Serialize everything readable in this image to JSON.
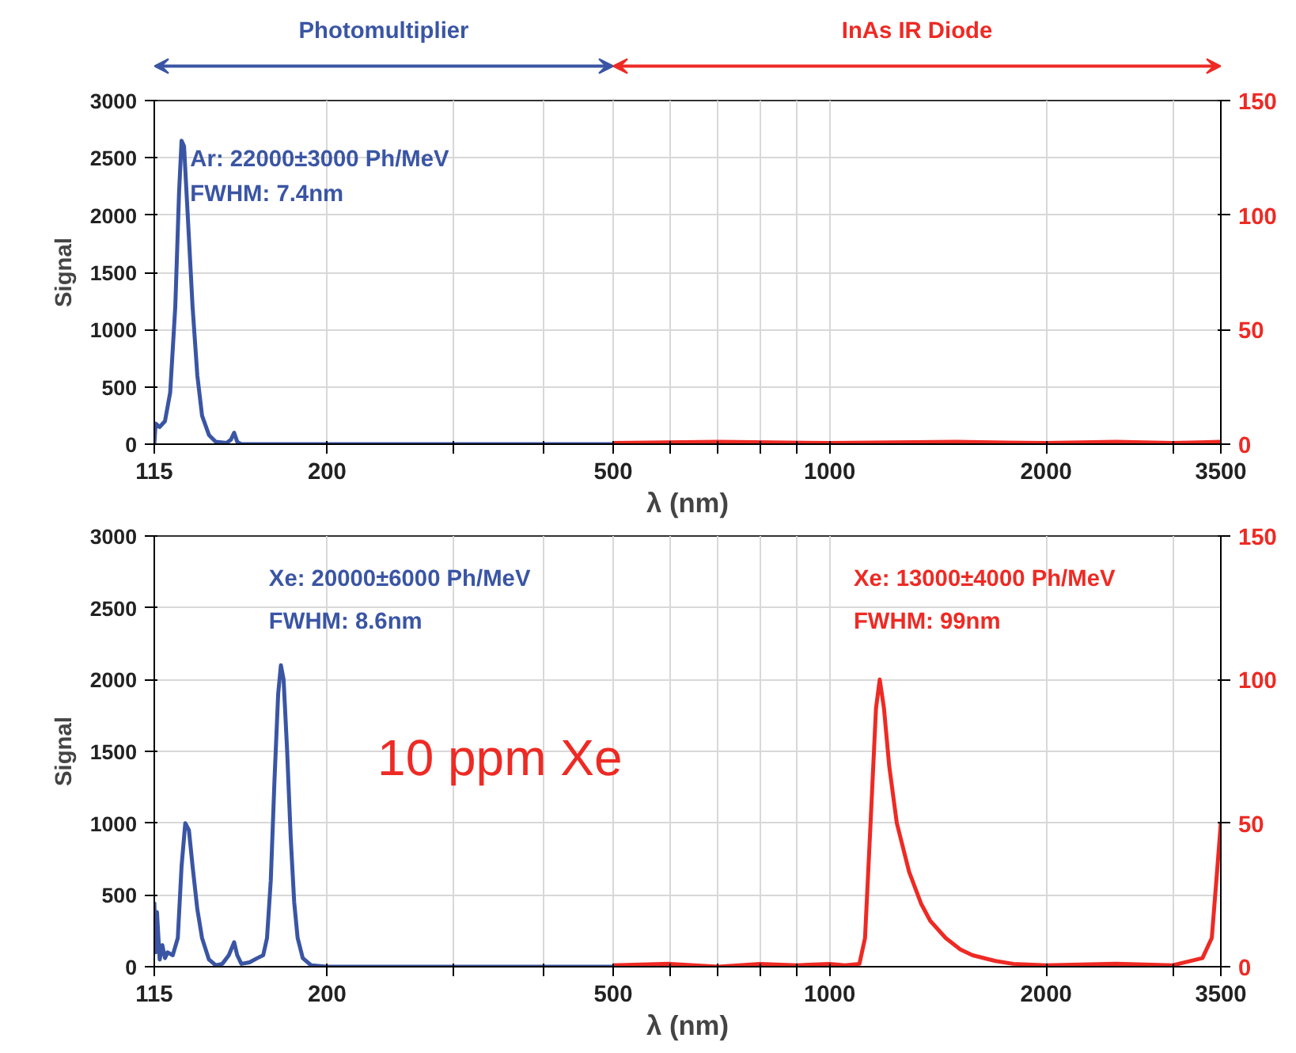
{
  "chart_data": [
    {
      "type": "line",
      "xlabel": "λ (nm)",
      "ylabel": "Signal",
      "log": "x",
      "grid": true,
      "marker": "none",
      "line_style": "solid",
      "xlim": [
        115,
        3500
      ],
      "xticks": [
        115,
        200,
        {
          "value": 300,
          "label": null
        },
        {
          "value": 400,
          "label": null
        },
        500,
        {
          "value": 600,
          "label": null
        },
        {
          "value": 700,
          "label": null
        },
        {
          "value": 800,
          "label": null
        },
        {
          "value": 900,
          "label": null
        },
        1000,
        2000,
        {
          "value": 3000,
          "label": null
        },
        3500
      ],
      "ylim": [
        0,
        3000
      ],
      "yticks": [
        0,
        500,
        1000,
        1500,
        2000,
        2500,
        3000
      ],
      "y2lim": [
        0,
        150
      ],
      "y2ticks": [
        0,
        50,
        100,
        150
      ],
      "annotations": [
        "Photomultiplier",
        "InAs IR Diode",
        "Ar: 22000±3000 Ph/MeV",
        "FWHM: 7.4nm"
      ],
      "series": [
        {
          "color": "#3a55a4",
          "x": [
            115,
            115.5,
            117,
            119,
            121,
            123,
            124.5,
            125.5,
            126.5,
            128,
            130,
            132,
            134,
            137,
            140,
            145,
            147,
            148.5,
            150,
            152,
            200,
            300,
            500
          ],
          "values": [
            0,
            180,
            150,
            200,
            450,
            1200,
            2200,
            2650,
            2600,
            2000,
            1200,
            600,
            250,
            80,
            20,
            10,
            40,
            100,
            20,
            0,
            0,
            0,
            0
          ]
        },
        {
          "color": "#ee2a24",
          "axis": "y2",
          "x": [
            500,
            700,
            1000,
            1500,
            2000,
            2500,
            3000,
            3500
          ],
          "values": [
            0.5,
            1,
            0.5,
            1,
            0.5,
            1,
            0.5,
            1
          ]
        }
      ]
    },
    {
      "type": "line",
      "xlabel": "λ (nm)",
      "ylabel": "Signal",
      "log": "x",
      "grid": true,
      "marker": "none",
      "line_style": "solid",
      "xlim": [
        115,
        3500
      ],
      "xticks": [
        115,
        200,
        {
          "value": 300,
          "label": null
        },
        {
          "value": 400,
          "label": null
        },
        500,
        {
          "value": 600,
          "label": null
        },
        {
          "value": 700,
          "label": null
        },
        {
          "value": 800,
          "label": null
        },
        {
          "value": 900,
          "label": null
        },
        1000,
        2000,
        {
          "value": 3000,
          "label": null
        },
        3500
      ],
      "ylim": [
        0,
        3000
      ],
      "yticks": [
        0,
        500,
        1000,
        1500,
        2000,
        2500,
        3000
      ],
      "y2lim": [
        0,
        150
      ],
      "y2ticks": [
        0,
        50,
        100,
        150
      ],
      "annotations": [
        "Xe: 20000±6000 Ph/MeV",
        "FWHM: 8.6nm",
        "Xe: 13000±4000 Ph/MeV",
        "FWHM: 99nm",
        "10 ppm Xe"
      ],
      "series": [
        {
          "color": "#3a55a4",
          "x": [
            115,
            115.5,
            116,
            117,
            118,
            119,
            120,
            122,
            124,
            125.5,
            127,
            128.5,
            130,
            132,
            134,
            137,
            140,
            143,
            146,
            148.5,
            150,
            152,
            156,
            160,
            163,
            165,
            167,
            169,
            171,
            172.5,
            174,
            176,
            178,
            180,
            182,
            185,
            190,
            200,
            300,
            500
          ],
          "values": [
            450,
            100,
            380,
            50,
            150,
            60,
            100,
            80,
            200,
            700,
            1000,
            950,
            700,
            400,
            200,
            50,
            10,
            20,
            80,
            170,
            80,
            20,
            30,
            60,
            80,
            200,
            600,
            1300,
            1900,
            2100,
            2000,
            1500,
            900,
            450,
            200,
            60,
            10,
            0,
            0,
            0
          ]
        },
        {
          "color": "#ee2a24",
          "axis": "y2",
          "x": [
            500,
            600,
            700,
            800,
            900,
            1000,
            1050,
            1100,
            1120,
            1140,
            1160,
            1174,
            1190,
            1210,
            1240,
            1290,
            1340,
            1380,
            1450,
            1520,
            1580,
            1700,
            1800,
            2000,
            2500,
            3000,
            3300,
            3400,
            3450,
            3500
          ],
          "values": [
            0.5,
            1,
            0,
            1,
            0.5,
            1,
            0.5,
            1,
            10,
            50,
            90,
            100,
            90,
            70,
            50,
            33,
            22,
            16,
            10,
            6,
            4,
            2,
            1,
            0.5,
            1,
            0.5,
            3,
            10,
            30,
            50
          ]
        }
      ]
    }
  ]
}
